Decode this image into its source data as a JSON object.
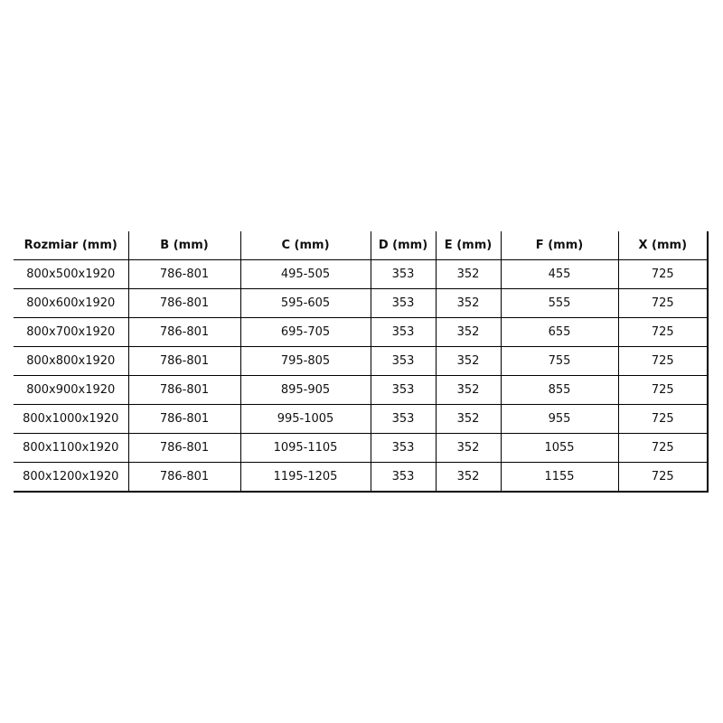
{
  "headers": [
    "Rozmiar (mm)",
    "B (mm)",
    "C (mm)",
    "D (mm)",
    "E (mm)",
    "F (mm)",
    "X (mm)"
  ],
  "rows": [
    [
      "800x500x1920",
      "786-801",
      "495-505",
      "353",
      "352",
      "455",
      "725"
    ],
    [
      "800x600x1920",
      "786-801",
      "595-605",
      "353",
      "352",
      "555",
      "725"
    ],
    [
      "800x700x1920",
      "786-801",
      "695-705",
      "353",
      "352",
      "655",
      "725"
    ],
    [
      "800x800x1920",
      "786-801",
      "795-805",
      "353",
      "352",
      "755",
      "725"
    ],
    [
      "800x900x1920",
      "786-801",
      "895-905",
      "353",
      "352",
      "855",
      "725"
    ],
    [
      "800x1000x1920",
      "786-801",
      "995-1005",
      "353",
      "352",
      "955",
      "725"
    ],
    [
      "800x1100x1920",
      "786-801",
      "1095-1105",
      "353",
      "352",
      "1055",
      "725"
    ],
    [
      "800x1200x1920",
      "786-801",
      "1195-1205",
      "353",
      "352",
      "1155",
      "725"
    ]
  ]
}
